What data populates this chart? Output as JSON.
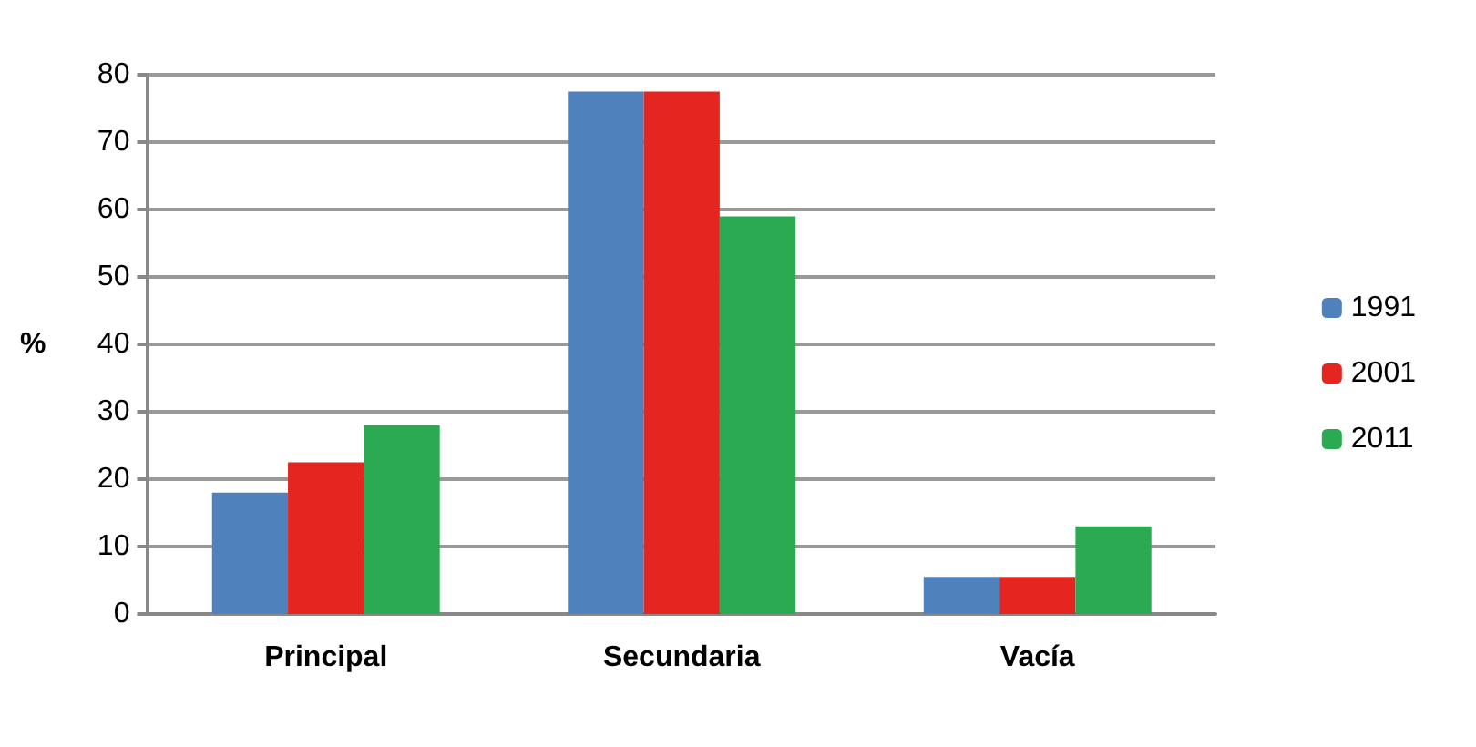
{
  "chart_data": {
    "type": "bar",
    "ylabel": "%",
    "categories": [
      "Principal",
      "Secundaria",
      "Vacía"
    ],
    "series": [
      {
        "name": "1991",
        "color": "#4f81bd",
        "values": [
          18,
          77.5,
          5.5
        ]
      },
      {
        "name": "2001",
        "color": "#e42520",
        "values": [
          22.5,
          77.5,
          5.5
        ]
      },
      {
        "name": "2011",
        "color": "#2baa52",
        "values": [
          28,
          59,
          13
        ]
      }
    ],
    "ylim": [
      0,
      80
    ],
    "yticks": [
      0,
      10,
      20,
      30,
      40,
      50,
      60,
      70,
      80
    ],
    "grid": true,
    "legend": "right"
  }
}
